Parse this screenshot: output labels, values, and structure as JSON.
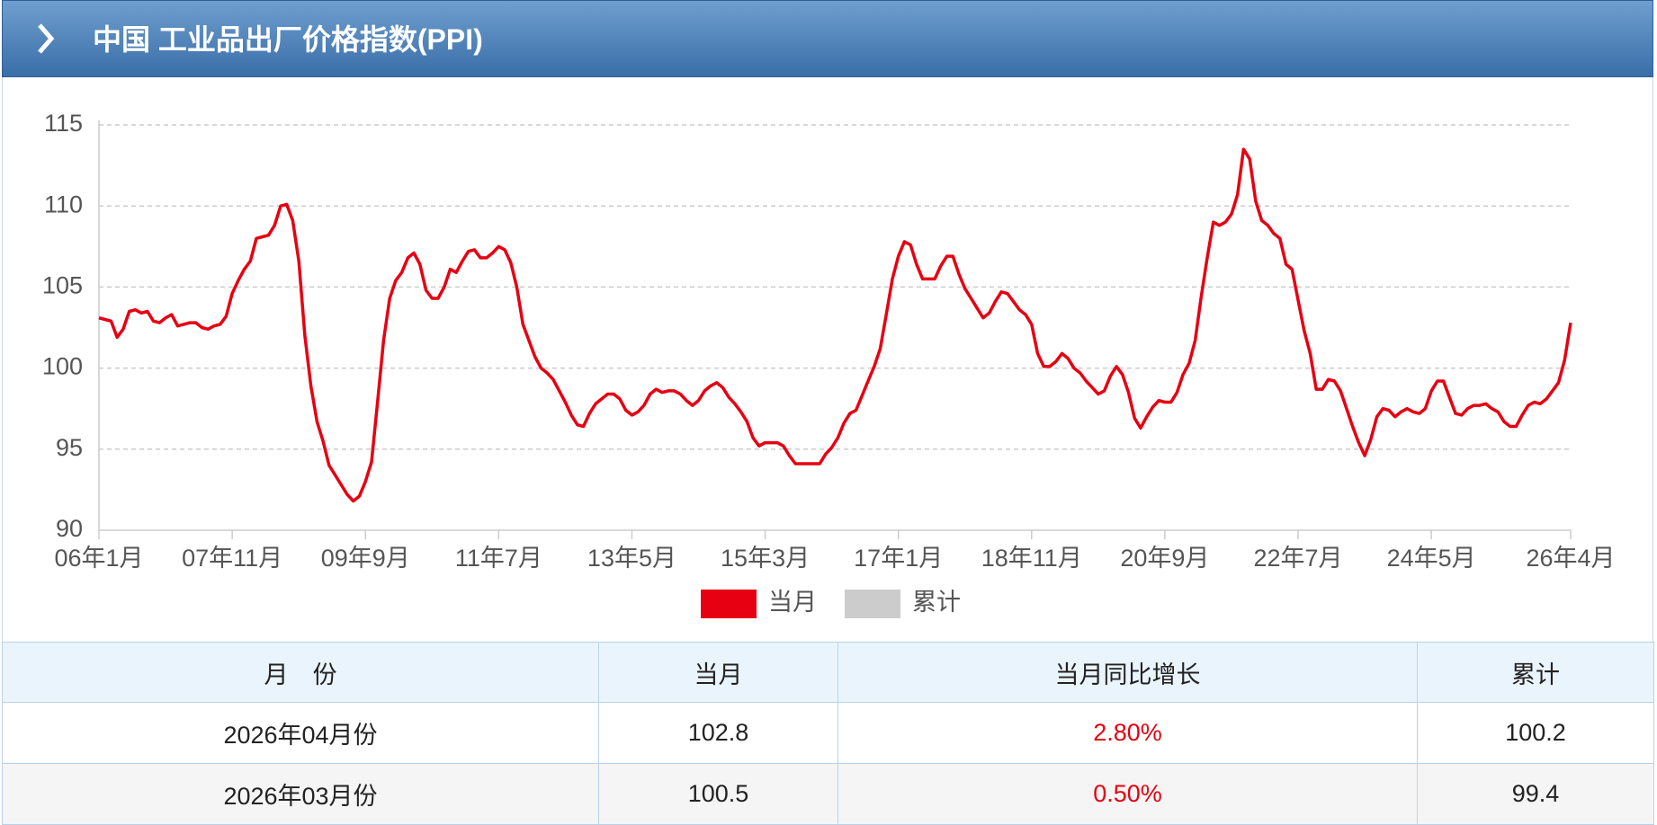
{
  "header": {
    "title": "中国 工业品出厂价格指数(PPI)"
  },
  "chart_data": {
    "type": "line",
    "categories": [
      "06年1月",
      null,
      null,
      null,
      null,
      null,
      null,
      null,
      null,
      null,
      null,
      null,
      null,
      null,
      null,
      null,
      null,
      null,
      null,
      null,
      null,
      null,
      "07年11月",
      null,
      null,
      null,
      null,
      null,
      null,
      null,
      null,
      null,
      null,
      null,
      null,
      null,
      null,
      null,
      null,
      null,
      null,
      null,
      null,
      null,
      "09年9月",
      null,
      null,
      null,
      null,
      null,
      null,
      null,
      null,
      null,
      null,
      null,
      null,
      null,
      null,
      null,
      null,
      null,
      null,
      null,
      null,
      null,
      "11年7月",
      null,
      null,
      null,
      null,
      null,
      null,
      null,
      null,
      null,
      null,
      null,
      null,
      null,
      null,
      null,
      null,
      null,
      null,
      null,
      null,
      null,
      "13年5月",
      null,
      null,
      null,
      null,
      null,
      null,
      null,
      null,
      null,
      null,
      null,
      null,
      null,
      null,
      null,
      null,
      null,
      null,
      null,
      null,
      null,
      "15年3月",
      null,
      null,
      null,
      null,
      null,
      null,
      null,
      null,
      null,
      null,
      null,
      null,
      null,
      null,
      null,
      null,
      null,
      null,
      null,
      null,
      null,
      "17年1月",
      null,
      null,
      null,
      null,
      null,
      null,
      null,
      null,
      null,
      null,
      null,
      null,
      null,
      null,
      null,
      null,
      null,
      null,
      null,
      null,
      null,
      "18年11月",
      null,
      null,
      null,
      null,
      null,
      null,
      null,
      null,
      null,
      null,
      null,
      null,
      null,
      null,
      null,
      null,
      null,
      null,
      null,
      null,
      null,
      "20年9月",
      null,
      null,
      null,
      null,
      null,
      null,
      null,
      null,
      null,
      null,
      null,
      null,
      null,
      null,
      null,
      null,
      null,
      null,
      null,
      null,
      null,
      "22年7月",
      null,
      null,
      null,
      null,
      null,
      null,
      null,
      null,
      null,
      null,
      null,
      null,
      null,
      null,
      null,
      null,
      null,
      null,
      null,
      null,
      null,
      "24年5月",
      null,
      null,
      null,
      null,
      null,
      null,
      null,
      null,
      null,
      null,
      null,
      null,
      null,
      null,
      null,
      null,
      null,
      null,
      null,
      null,
      null,
      null,
      "26年4月"
    ],
    "series": [
      {
        "name": "当月",
        "color": "#e60012",
        "values": [
          103.1,
          103.0,
          102.9,
          101.9,
          102.4,
          103.5,
          103.6,
          103.4,
          103.5,
          102.9,
          102.8,
          103.1,
          103.3,
          102.6,
          102.7,
          102.8,
          102.8,
          102.5,
          102.4,
          102.6,
          102.7,
          103.2,
          104.6,
          105.4,
          106.1,
          106.6,
          108.0,
          108.1,
          108.2,
          108.8,
          110.0,
          110.1,
          109.1,
          106.6,
          102.0,
          98.9,
          96.7,
          95.5,
          94.0,
          93.4,
          92.8,
          92.2,
          91.8,
          92.1,
          93.0,
          94.2,
          97.9,
          101.7,
          104.3,
          105.4,
          105.9,
          106.8,
          107.1,
          106.4,
          104.8,
          104.3,
          104.3,
          105.0,
          106.1,
          105.9,
          106.6,
          107.2,
          107.3,
          106.8,
          106.8,
          107.1,
          107.5,
          107.3,
          106.5,
          105.0,
          102.7,
          101.7,
          100.7,
          100.0,
          99.7,
          99.3,
          98.6,
          97.9,
          97.1,
          96.5,
          96.4,
          97.2,
          97.8,
          98.1,
          98.4,
          98.4,
          98.1,
          97.4,
          97.1,
          97.3,
          97.7,
          98.4,
          98.7,
          98.5,
          98.6,
          98.6,
          98.4,
          98.0,
          97.7,
          98.0,
          98.6,
          98.9,
          99.1,
          98.8,
          98.2,
          97.8,
          97.3,
          96.7,
          95.7,
          95.2,
          95.4,
          95.4,
          95.4,
          95.2,
          94.6,
          94.1,
          94.1,
          94.1,
          94.1,
          94.1,
          94.7,
          95.1,
          95.7,
          96.6,
          97.2,
          97.4,
          98.3,
          99.2,
          100.1,
          101.2,
          103.3,
          105.5,
          106.9,
          107.8,
          107.6,
          106.4,
          105.5,
          105.5,
          105.5,
          106.3,
          106.9,
          106.9,
          105.8,
          104.9,
          104.3,
          103.7,
          103.1,
          103.4,
          104.1,
          104.7,
          104.6,
          104.1,
          103.6,
          103.3,
          102.7,
          100.9,
          100.1,
          100.1,
          100.4,
          100.9,
          100.6,
          100.0,
          99.7,
          99.2,
          98.8,
          98.4,
          98.6,
          99.5,
          100.1,
          99.6,
          98.5,
          96.9,
          96.3,
          97.0,
          97.6,
          98.0,
          97.9,
          97.9,
          98.5,
          99.6,
          100.3,
          101.7,
          104.4,
          106.8,
          109.0,
          108.8,
          109.0,
          109.5,
          110.7,
          113.5,
          112.9,
          110.3,
          109.1,
          108.8,
          108.3,
          108.0,
          106.4,
          106.1,
          104.2,
          102.3,
          100.9,
          98.7,
          98.7,
          99.3,
          99.2,
          98.6,
          97.5,
          96.4,
          95.4,
          94.6,
          95.6,
          97.0,
          97.5,
          97.4,
          97.0,
          97.3,
          97.5,
          97.3,
          97.2,
          97.5,
          98.6,
          99.2,
          99.2,
          98.2,
          97.2,
          97.1,
          97.5,
          97.7,
          97.7,
          97.8,
          97.5,
          97.3,
          96.7,
          96.4,
          96.4,
          97.1,
          97.7,
          97.9,
          97.8,
          98.1,
          98.6,
          99.1,
          100.5,
          102.8
        ]
      }
    ],
    "hidden_series": {
      "name": "累计",
      "color": "#cccccc"
    },
    "ylim": [
      90,
      115
    ],
    "yticks": [
      90,
      95,
      100,
      105,
      110,
      115
    ],
    "grid": true
  },
  "table": {
    "header": [
      "月　份",
      "当月",
      "当月同比增长",
      "累计"
    ],
    "rows": [
      [
        "2026年04月份",
        "102.8",
        "2.80%",
        "100.2"
      ],
      [
        "2026年03月份",
        "100.5",
        "0.50%",
        "99.4"
      ]
    ]
  }
}
